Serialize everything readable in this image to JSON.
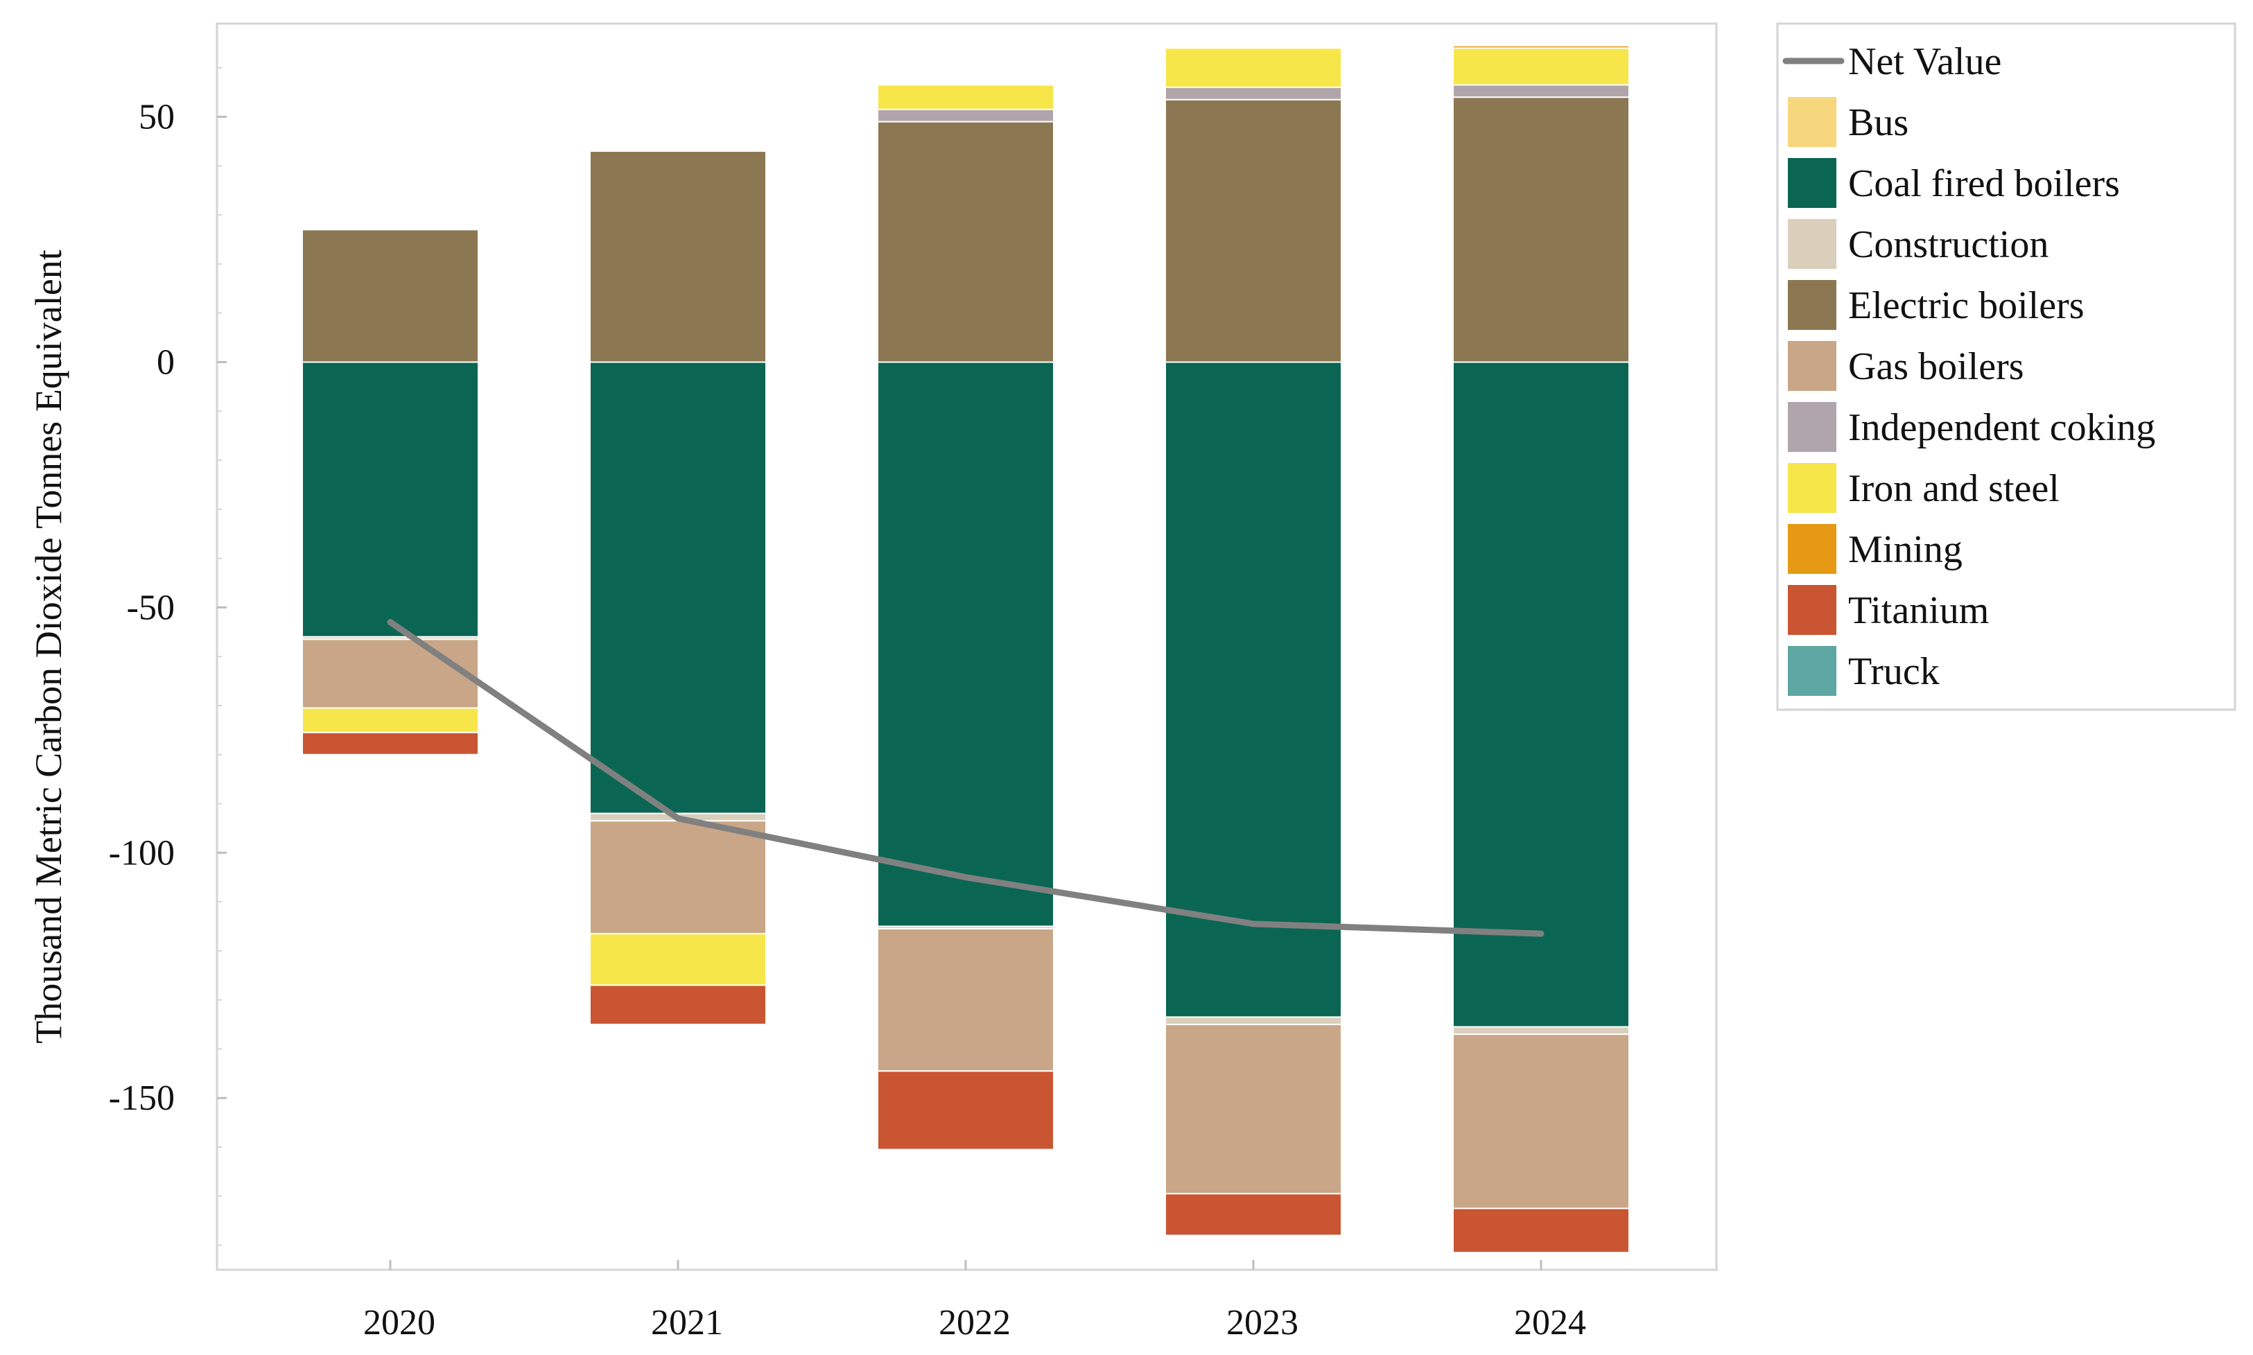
{
  "chart_data": {
    "type": "bar",
    "stacked": true,
    "diverging": true,
    "title": "",
    "xlabel": "",
    "ylabel": "Thousand Metric Carbon Dioxide Tonnes Equivalent",
    "ylim": [
      -185,
      69
    ],
    "yticks": [
      -150,
      -100,
      -50,
      0,
      50
    ],
    "ytick_labels": [
      "-150",
      "-100",
      "-50",
      "0",
      "50"
    ],
    "categories": [
      "2020",
      "2021",
      "2022",
      "2023",
      "2024"
    ],
    "series": [
      {
        "name": "Bus",
        "color": "#f7d77d",
        "values": [
          0,
          0,
          0,
          0,
          0
        ]
      },
      {
        "name": "Coal fired boilers",
        "color": "#0a6653",
        "values": [
          -56,
          -92,
          -115,
          -133.5,
          -135.5
        ]
      },
      {
        "name": "Construction",
        "color": "#d9cfbb",
        "values": [
          -0.5,
          -1.5,
          -0.5,
          -1.5,
          -1.5
        ]
      },
      {
        "name": "Electric boilers",
        "color": "#8b7751",
        "values": [
          27,
          43,
          49,
          53.5,
          54
        ]
      },
      {
        "name": "Gas boilers",
        "color": "#c9a687",
        "values": [
          -14,
          -23,
          -29,
          -34.5,
          -35.5
        ]
      },
      {
        "name": "Independent coking",
        "color": "#b1a5ac",
        "values": [
          0,
          0,
          2.5,
          2.5,
          2.5
        ]
      },
      {
        "name": "Iron and steel",
        "color": "#f6e64a",
        "values": [
          -5,
          -10.5,
          5,
          8,
          7.5
        ]
      },
      {
        "name": "Mining",
        "color": "#e69914",
        "values": [
          0,
          0,
          0,
          0,
          0.5
        ]
      },
      {
        "name": "Titanium",
        "color": "#c95533",
        "values": [
          -4.5,
          -8,
          -16,
          -8.5,
          -9
        ]
      },
      {
        "name": "Truck",
        "color": "#5ea6a2",
        "values": [
          0,
          0,
          0,
          0,
          0
        ]
      }
    ],
    "net_value": {
      "name": "Net Value",
      "color": "#808080",
      "values": [
        -53,
        -93,
        -105,
        -114.5,
        -116.5
      ]
    },
    "legend": {
      "position": "right",
      "entries": [
        "Net Value",
        "Bus",
        "Coal fired boilers",
        "Construction",
        "Electric boilers",
        "Gas boilers",
        "Independent coking",
        "Iron and steel",
        "Mining",
        "Titanium",
        "Truck"
      ]
    },
    "grid": false
  }
}
